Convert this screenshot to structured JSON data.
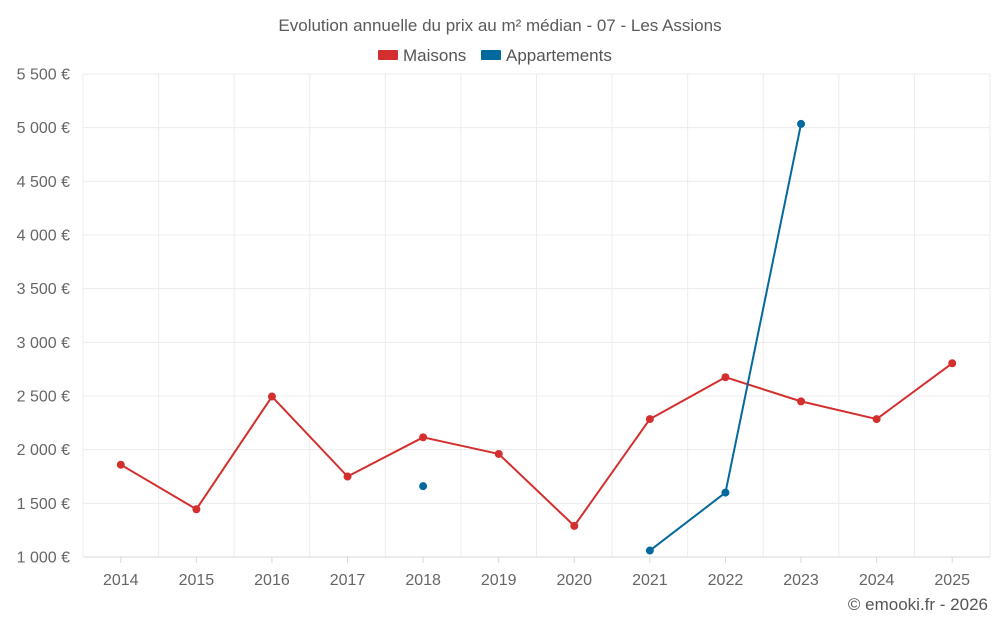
{
  "chart_data": {
    "type": "line",
    "title": "Evolution annuelle du prix au m² médian - 07 - Les Assions",
    "categories": [
      "2014",
      "2015",
      "2016",
      "2017",
      "2018",
      "2019",
      "2020",
      "2021",
      "2022",
      "2023",
      "2024",
      "2025"
    ],
    "ylim": [
      1000,
      5500
    ],
    "yticks": [
      1000,
      1500,
      2000,
      2500,
      3000,
      3500,
      4000,
      4500,
      5000,
      5500
    ],
    "ytick_labels": [
      "1 000 €",
      "1 500 €",
      "2 000 €",
      "2 500 €",
      "3 000 €",
      "3 500 €",
      "4 000 €",
      "4 500 €",
      "5 000 €",
      "5 500 €"
    ],
    "grid": true,
    "legend_position": "top-center",
    "series": [
      {
        "name": "Maisons",
        "color": "#d32f2f",
        "values": [
          1860,
          1445,
          2495,
          1750,
          2115,
          1960,
          1290,
          2285,
          2675,
          2450,
          2285,
          2805
        ]
      },
      {
        "name": "Appartements",
        "color": "#04699c",
        "values": [
          null,
          null,
          null,
          null,
          1660,
          null,
          null,
          1060,
          1600,
          5035,
          null,
          null
        ]
      }
    ]
  },
  "credit": "© emooki.fr - 2026"
}
